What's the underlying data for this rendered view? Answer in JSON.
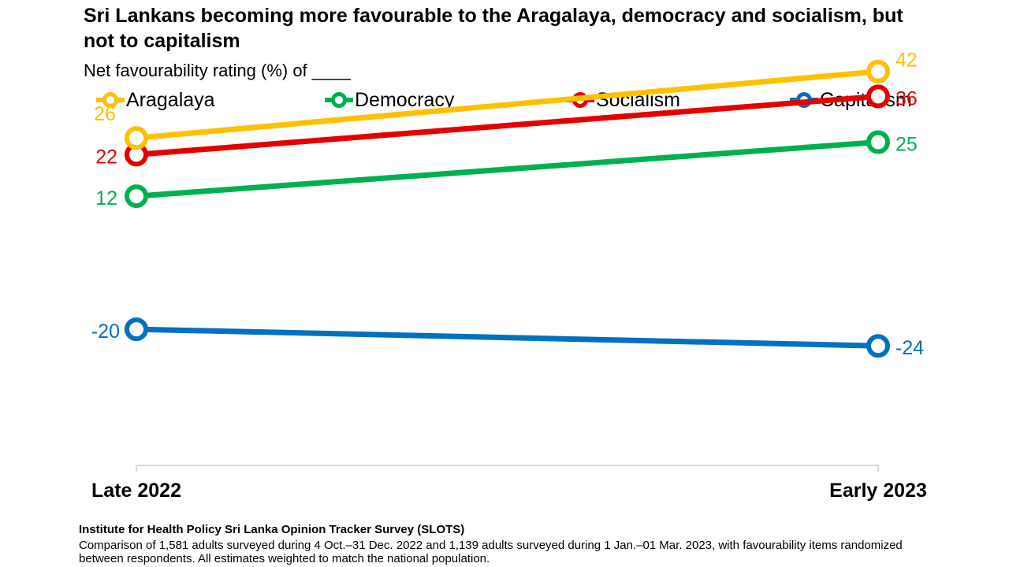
{
  "chart_data": {
    "type": "line",
    "title": "Sri Lankans becoming more favourable to the Aragalaya, democracy and socialism, but not to capitalism",
    "subtitle": "Net favourability rating (%) of ____",
    "categories": [
      "Late 2022",
      "Early 2023"
    ],
    "series": [
      {
        "name": "Aragalaya",
        "values": [
          26,
          42
        ],
        "labels": [
          "26",
          "42"
        ],
        "color": "#FFC000"
      },
      {
        "name": "Democracy",
        "values": [
          12,
          25
        ],
        "labels": [
          "12",
          "25"
        ],
        "color": "#00B050"
      },
      {
        "name": "Socialism",
        "values": [
          22,
          36
        ],
        "labels": [
          "22",
          "36"
        ],
        "color": "#E60000"
      },
      {
        "name": "Capitalism",
        "values": [
          -20,
          -24
        ],
        "labels": [
          "-20",
          "-24"
        ],
        "color": "#0070C0"
      }
    ],
    "ylim": [
      -30,
      45
    ],
    "xlabel": "",
    "ylabel": "",
    "legend": "top"
  },
  "source": {
    "institution": "Institute for Health Policy Sri Lanka Opinion Tracker Survey (SLOTS)",
    "note": "Comparison of 1,581 adults surveyed during 4 Oct.–31 Dec. 2022 and 1,139 adults surveyed during 1 Jan.–01 Mar. 2023, with favourability items randomized between respondents. All estimates weighted to match the national population."
  },
  "colors": {
    "axis": "#D9D9D9"
  }
}
